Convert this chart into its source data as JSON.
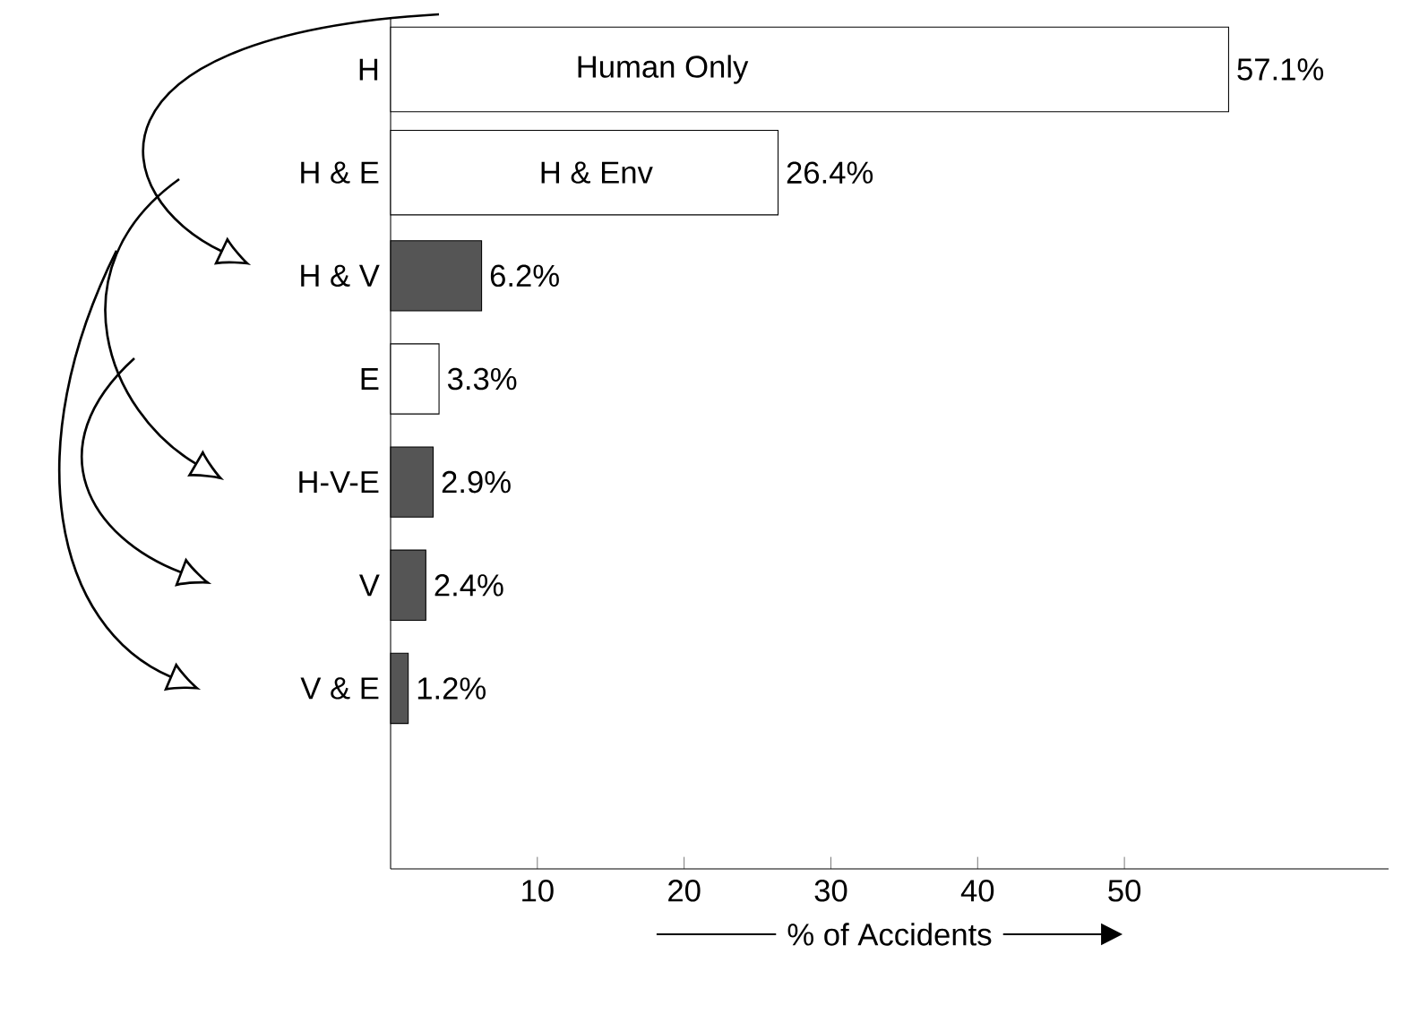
{
  "chart_data": {
    "type": "bar",
    "orientation": "horizontal",
    "xlabel": "% of Accidents",
    "categories": [
      "H",
      "H & E",
      "H & V",
      "E",
      "H-V-E",
      "V",
      "V & E"
    ],
    "values": [
      57.1,
      26.4,
      6.2,
      3.3,
      2.9,
      2.4,
      1.2
    ],
    "value_labels": [
      "57.1%",
      "26.4%",
      "6.2%",
      "3.3%",
      "2.9%",
      "2.4%",
      "1.2%"
    ],
    "colors": [
      "#ffffff",
      "#ffffff",
      "#555555",
      "#ffffff",
      "#555555",
      "#555555",
      "#555555"
    ],
    "xlim": [
      0,
      68
    ],
    "xticks": [
      10,
      20,
      30,
      40,
      50
    ],
    "grid": false,
    "annotations": [
      {
        "text": "Human Only",
        "x": 18.5,
        "y": "H"
      },
      {
        "text": "H & Env",
        "x": 14,
        "y": "H & E"
      }
    ]
  }
}
